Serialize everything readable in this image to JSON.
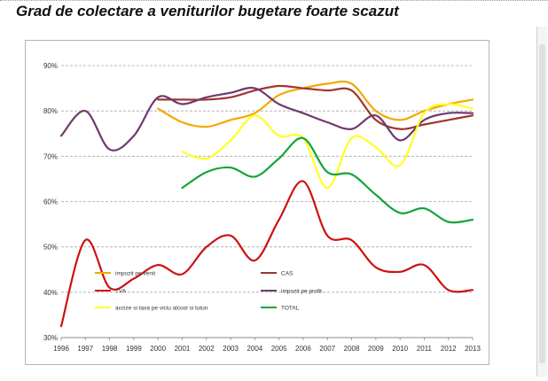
{
  "page": {
    "title": "Grad de colectare a veniturilor bugetare foarte scazut"
  },
  "chart_data": {
    "type": "line",
    "title": "",
    "xlabel": "",
    "ylabel": "",
    "ylim": [
      30,
      90
    ],
    "yticks": [
      30,
      40,
      50,
      60,
      70,
      80,
      90
    ],
    "ytick_labels": [
      "30%",
      "40%",
      "50%",
      "60%",
      "70%",
      "80%",
      "90%"
    ],
    "grid": "horizontal dashed",
    "legend_position": "bottom-left",
    "x": [
      1996,
      1997,
      1998,
      1999,
      2000,
      2001,
      2002,
      2003,
      2004,
      2005,
      2006,
      2007,
      2008,
      2009,
      2010,
      2011,
      2012,
      2013
    ],
    "xtick_labels": [
      "1996",
      "1997",
      "1998",
      "1999",
      "2000",
      "2001",
      "2002",
      "2003",
      "2004",
      "2005",
      "2006",
      "2007",
      "2008",
      "2009",
      "2010",
      "2011",
      "2012",
      "2013"
    ],
    "series": [
      {
        "name": "impozit pe venit",
        "color": "#F5A800",
        "values": [
          null,
          null,
          null,
          null,
          80.5,
          77.5,
          76.5,
          78.0,
          79.5,
          83.5,
          85.0,
          86.0,
          86.0,
          80.0,
          78.0,
          80.0,
          81.5,
          82.5
        ]
      },
      {
        "name": "CAS",
        "color": "#A0352B",
        "values": [
          null,
          null,
          null,
          null,
          82.5,
          82.5,
          82.5,
          83.0,
          84.5,
          85.5,
          85.0,
          84.5,
          84.5,
          78.0,
          76.0,
          77.0,
          78.0,
          79.0
        ]
      },
      {
        "name": "TVA",
        "color": "#CC1111",
        "values": [
          32.5,
          51.5,
          41.0,
          43.0,
          46.0,
          44.0,
          50.0,
          52.5,
          47.0,
          56.0,
          64.5,
          52.5,
          51.5,
          45.5,
          44.5,
          46.0,
          40.5,
          40.5
        ]
      },
      {
        "name": "impozit pe profit",
        "color": "#6E3A6E",
        "values": [
          74.5,
          80.0,
          71.5,
          74.5,
          83.0,
          81.5,
          83.0,
          84.0,
          85.0,
          81.5,
          79.5,
          77.5,
          76.0,
          79.0,
          73.5,
          78.0,
          79.5,
          79.5
        ]
      },
      {
        "name": "accize si taxa pe viciu alcool si tutun",
        "color": "#FFFF22",
        "values": [
          null,
          null,
          null,
          null,
          null,
          71.0,
          69.5,
          73.5,
          79.0,
          74.5,
          74.0,
          63.0,
          74.0,
          72.0,
          68.0,
          79.5,
          81.5,
          80.5
        ]
      },
      {
        "name": "TOTAL",
        "color": "#13A538",
        "values": [
          null,
          null,
          null,
          null,
          null,
          63.0,
          66.5,
          67.5,
          65.5,
          69.5,
          74.0,
          66.5,
          66.0,
          61.5,
          57.5,
          58.5,
          55.5,
          56.0
        ]
      }
    ],
    "legend": [
      {
        "label": "impozit pe venit",
        "color": "#F5A800"
      },
      {
        "label": "CAS",
        "color": "#A0352B"
      },
      {
        "label": "TVA",
        "color": "#CC1111"
      },
      {
        "label": "impozit pe profit",
        "color": "#6E3A6E"
      },
      {
        "label": "accize si taxa pe viciu alcool si tutun",
        "color": "#FFFF22"
      },
      {
        "label": "TOTAL",
        "color": "#13A538"
      }
    ]
  }
}
